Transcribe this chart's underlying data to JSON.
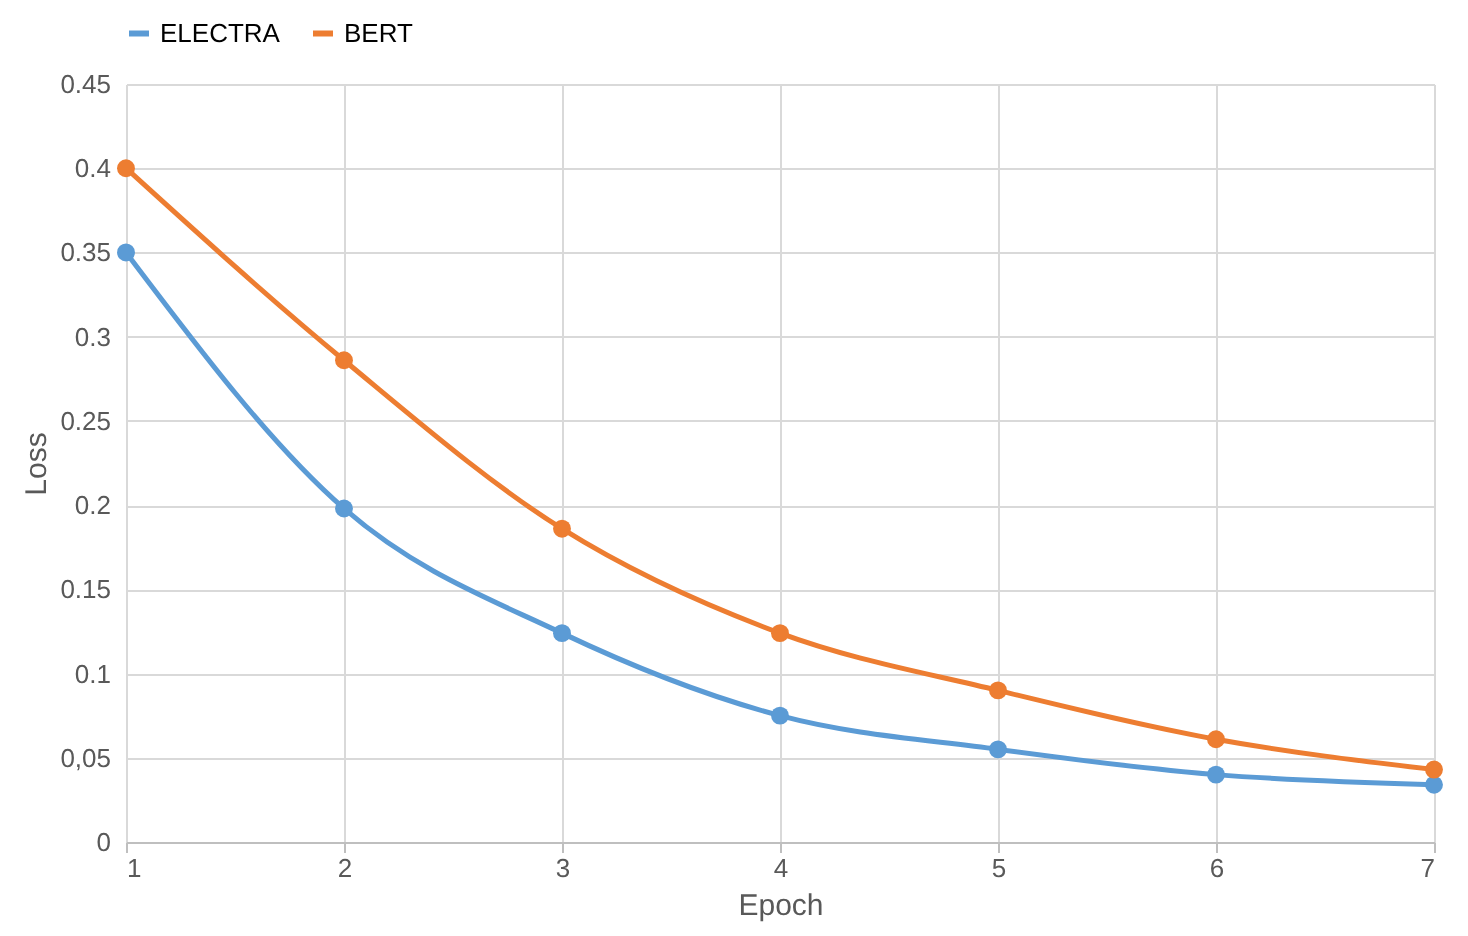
{
  "chart_data": {
    "type": "line",
    "xlabel": "Epoch",
    "ylabel": "Loss",
    "x": [
      1,
      2,
      3,
      4,
      5,
      6,
      7
    ],
    "series": [
      {
        "name": "ELECTRA",
        "color": "#5b9bd5",
        "values": [
          0.35,
          0.198,
          0.124,
          0.075,
          0.055,
          0.04,
          0.034
        ]
      },
      {
        "name": "BERT",
        "color": "#ed7d31",
        "values": [
          0.4,
          0.286,
          0.186,
          0.124,
          0.09,
          0.061,
          0.043
        ]
      }
    ],
    "xlim": [
      1,
      7
    ],
    "xticks": [
      1,
      2,
      3,
      4,
      5,
      6,
      7
    ],
    "ylim": [
      0,
      0.45
    ],
    "yticks": [
      0,
      {
        "value": 0.05,
        "label": "0,05"
      },
      0.1,
      0.15,
      0.2,
      0.25,
      0.3,
      0.35,
      0.4,
      0.45
    ],
    "grid": true,
    "legend": "top",
    "marker": "circle",
    "line_style": "solid"
  }
}
